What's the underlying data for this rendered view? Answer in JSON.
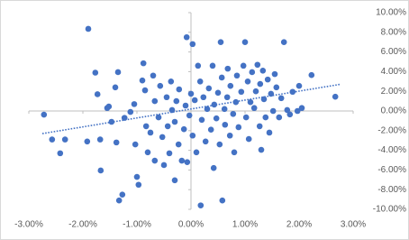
{
  "chart_data": {
    "type": "scatter",
    "color": "#4472c4",
    "x": [
      -2.72,
      -2.57,
      -2.42,
      -2.33,
      -1.9,
      -1.92,
      -1.77,
      -1.73,
      -1.68,
      -1.67,
      -1.55,
      -1.52,
      -1.47,
      -1.4,
      -1.38,
      -1.35,
      -1.33,
      -1.27,
      -1.23,
      -1.12,
      -1.05,
      -1.03,
      -1.0,
      -0.97,
      -0.88,
      -0.9,
      -0.85,
      -0.83,
      -0.8,
      -0.75,
      -0.7,
      -0.67,
      -0.67,
      -0.6,
      -0.57,
      -0.53,
      -0.5,
      -0.45,
      -0.43,
      -0.4,
      -0.37,
      -0.35,
      -0.3,
      -0.3,
      -0.27,
      -0.23,
      -0.22,
      -0.17,
      -0.13,
      -0.1,
      -0.08,
      -0.07,
      -0.03,
      0,
      0.03,
      0.03,
      0.07,
      0.1,
      0.13,
      0.17,
      0.18,
      0.2,
      0.23,
      0.27,
      0.3,
      0.33,
      0.37,
      0.4,
      0.42,
      0.43,
      0.47,
      0.5,
      0.53,
      0.55,
      0.57,
      0.58,
      0.62,
      0.63,
      0.67,
      0.68,
      0.72,
      0.73,
      0.78,
      0.8,
      0.83,
      0.85,
      0.88,
      0.93,
      0.97,
      1.0,
      1.02,
      1.05,
      1.07,
      1.1,
      1.13,
      1.17,
      1.2,
      1.23,
      1.27,
      1.28,
      1.3,
      1.33,
      1.35,
      1.38,
      1.42,
      1.45,
      1.48,
      1.52,
      1.55,
      1.58,
      1.63,
      1.67,
      1.72,
      1.78,
      1.83,
      1.88,
      1.97,
      2.0,
      2.23,
      2.67,
      2.05
    ],
    "y": [
      -0.37,
      -2.9,
      -4.3,
      -2.9,
      8.35,
      -3.1,
      3.9,
      1.7,
      -2.9,
      -6.05,
      0.3,
      0.45,
      -1.1,
      2.4,
      -3.2,
      3.95,
      -9.1,
      -8.5,
      -0.7,
      -0.1,
      0.7,
      -3.4,
      -6.7,
      -7.5,
      4.85,
      3.1,
      2.1,
      -1.55,
      -4.2,
      -2.2,
      3.6,
      1.0,
      -5.05,
      -0.65,
      2.55,
      -2.65,
      -5.5,
      1.4,
      -1.55,
      -4.3,
      3.0,
      0.1,
      -1.1,
      -7.05,
      1.0,
      -3.4,
      2.2,
      -5.05,
      -1.85,
      0.55,
      7.5,
      -5.2,
      -0.45,
      1.75,
      -2.5,
      6.8,
      1.1,
      -4.2,
      4.6,
      3.0,
      -9.6,
      -0.9,
      1.4,
      -3.1,
      0.2,
      2.3,
      -1.9,
      4.6,
      -5.8,
      0.65,
      -0.75,
      1.85,
      -3.4,
      7.0,
      3.4,
      -9.1,
      0.2,
      -1.4,
      1.4,
      4.3,
      -2.5,
      2.55,
      -0.3,
      -4.2,
      0.9,
      3.6,
      -1.65,
      1.95,
      4.6,
      7.0,
      -0.65,
      3.0,
      -2.85,
      0.9,
      3.95,
      0.3,
      2.0,
      4.7,
      -1.55,
      2.75,
      -3.95,
      4.1,
      1.2,
      -0.65,
      3.2,
      -2.2,
      1.75,
      0,
      3.75,
      2.4,
      -0.65,
      1.3,
      7.0,
      0.1,
      -0.35,
      1.95,
      0,
      2.55,
      3.65,
      1.45,
      0.3
    ],
    "xlim": [
      -3,
      3
    ],
    "ylim": [
      -10,
      10
    ],
    "xticks": [
      {
        "value": -3,
        "label": "-3.00%"
      },
      {
        "value": -2,
        "label": "-2.00%"
      },
      {
        "value": -1,
        "label": "-1.00%"
      },
      {
        "value": 0,
        "label": "0.00%"
      },
      {
        "value": 1,
        "label": "1.00%"
      },
      {
        "value": 2,
        "label": "2.00%"
      },
      {
        "value": 3,
        "label": "3.00%"
      }
    ],
    "yticks": [
      {
        "value": -10,
        "label": "-10.00%"
      },
      {
        "value": -8,
        "label": "-8.00%"
      },
      {
        "value": -6,
        "label": "-6.00%"
      },
      {
        "value": -4,
        "label": "-4.00%"
      },
      {
        "value": -2,
        "label": "-2.00%"
      },
      {
        "value": 0,
        "label": "0.00%"
      },
      {
        "value": 2,
        "label": "2.00%"
      },
      {
        "value": 4,
        "label": "4.00%"
      },
      {
        "value": 6,
        "label": "6.00%"
      },
      {
        "value": 8,
        "label": "8.00%"
      },
      {
        "value": 10,
        "label": "10.00%"
      }
    ],
    "trendline": {
      "x": [
        -2.75,
        2.75
      ],
      "y": [
        -2.3,
        2.7
      ],
      "style": "dotted"
    }
  }
}
